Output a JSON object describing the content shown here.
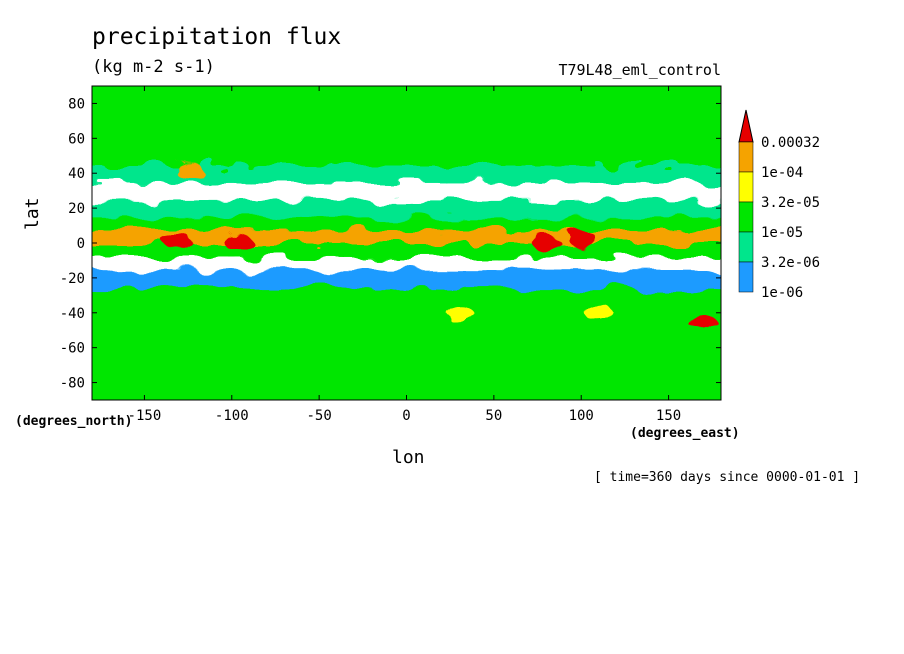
{
  "chart_data": {
    "type": "heatmap",
    "title": "precipitation flux",
    "units": "(kg m-2 s-1)",
    "dataset": "T79L48_eml_control",
    "xlabel": "lon",
    "xunit": "(degrees_east)",
    "ylabel": "lat",
    "yunit": "(degrees_north)",
    "time_note": "[ time=360 days since 0000-01-01 ]",
    "xlim": [
      -180,
      180
    ],
    "ylim": [
      -90,
      90
    ],
    "x_ticks": [
      -150,
      -100,
      -50,
      0,
      50,
      100,
      150
    ],
    "x_tick_labels": [
      "-150",
      "-100",
      "-50",
      "0",
      "50",
      "100",
      "150"
    ],
    "y_ticks": [
      80,
      60,
      40,
      20,
      0,
      -20,
      -40,
      -60,
      -80
    ],
    "y_tick_labels": [
      "80",
      "60",
      "40",
      "20",
      "0",
      "-20",
      "-40",
      "-60",
      "-80"
    ],
    "colorbar": {
      "levels": [
        "0.00032",
        "1e-04",
        "3.2e-05",
        "1e-05",
        "3.2e-06",
        "1e-06"
      ],
      "colors": [
        "#e60000",
        "#f5a300",
        "#ffff00",
        "#00e600",
        "#00e68c",
        "#1e9bff"
      ],
      "below_color": "#ffffff",
      "extend": "max"
    },
    "zonal_profile": [
      {
        "lat": -90,
        "level": 3
      },
      {
        "lat": -75,
        "level": 3
      },
      {
        "lat": -60,
        "level": 3
      },
      {
        "lat": -45,
        "level": 3
      },
      {
        "lat": -35,
        "level": 3
      },
      {
        "lat": -25,
        "level": 1
      },
      {
        "lat": -15,
        "level": 0
      },
      {
        "lat": -8,
        "level": 3
      },
      {
        "lat": 0,
        "level": 5
      },
      {
        "lat": 8,
        "level": 3
      },
      {
        "lat": 15,
        "level": 2
      },
      {
        "lat": 25,
        "level": 0
      },
      {
        "lat": 35,
        "level": 2
      },
      {
        "lat": 45,
        "level": 3
      },
      {
        "lat": 60,
        "level": 3
      },
      {
        "lat": 75,
        "level": 3
      },
      {
        "lat": 90,
        "level": 3
      }
    ],
    "features": [
      {
        "lon": -125,
        "lat": 42,
        "level": 5
      },
      {
        "lon": 100,
        "lat": 3,
        "level": 6
      },
      {
        "lon": 80,
        "lat": 0,
        "level": 6
      },
      {
        "lon": -130,
        "lat": 0,
        "level": 6
      },
      {
        "lon": -97,
        "lat": 1,
        "level": 6
      },
      {
        "lon": 170,
        "lat": -46,
        "level": 6
      },
      {
        "lon": 110,
        "lat": -40,
        "level": 4
      },
      {
        "lon": 30,
        "lat": -40,
        "level": 4
      }
    ]
  }
}
